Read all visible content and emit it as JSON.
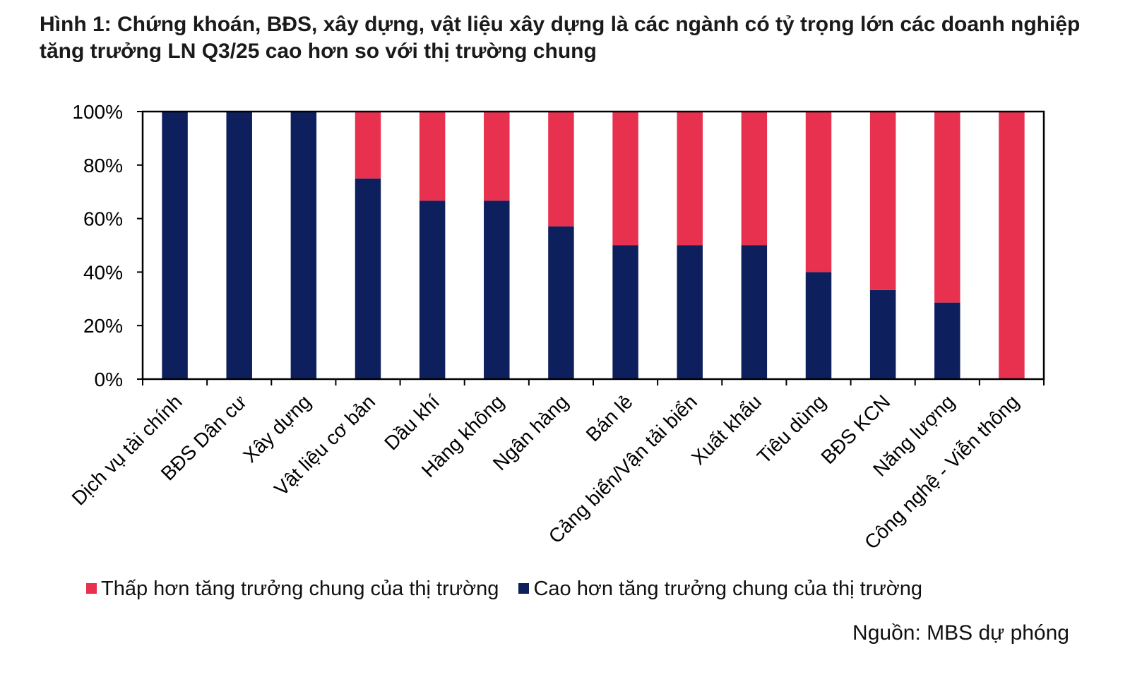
{
  "chart_data": {
    "type": "bar",
    "stacked": true,
    "title": "Hình 1: Chứng khoán, BĐS, xây dựng, vật liệu xây dựng là các ngành có tỷ trọng lớn các doanh nghiệp tăng trưởng LN Q3/25 cao hơn so với thị trường chung",
    "categories": [
      "Dịch vụ tài chính",
      "BĐS Dân cư",
      "Xây dựng",
      "Vật liệu cơ bản",
      "Dầu khí",
      "Hàng không",
      "Ngân hàng",
      "Bán lẻ",
      "Cảng biển/Vận tải biển",
      "Xuất khẩu",
      "Tiêu dùng",
      "BĐS KCN",
      "Năng lượng",
      "Công nghệ - Viễn thông"
    ],
    "series": [
      {
        "name": "Cao hơn tăng trưởng chung của thị trường",
        "color": "#0d1f5c",
        "values": [
          100,
          100,
          100,
          75,
          66.7,
          66.7,
          57.1,
          50,
          50,
          50,
          40,
          33.3,
          28.6,
          0
        ]
      },
      {
        "name": "Thấp hơn tăng trưởng chung của thị trường",
        "color": "#e8304f",
        "values": [
          0,
          0,
          0,
          25,
          33.3,
          33.3,
          42.9,
          50,
          50,
          50,
          60,
          66.7,
          71.4,
          100
        ]
      }
    ],
    "yticks": [
      "0%",
      "20%",
      "40%",
      "60%",
      "80%",
      "100%"
    ],
    "ylim": [
      0,
      100
    ],
    "xlabel": "",
    "ylabel": "",
    "legend_position": "bottom",
    "grid": false
  },
  "legend": {
    "low_label": "Thấp  hơn tăng trưởng chung của thị trường",
    "high_label": "Cao hơn tăng trưởng  chung của thị trường",
    "low_color": "#e8304f",
    "high_color": "#0d1f5c"
  },
  "source": "Nguồn: MBS dự phóng"
}
